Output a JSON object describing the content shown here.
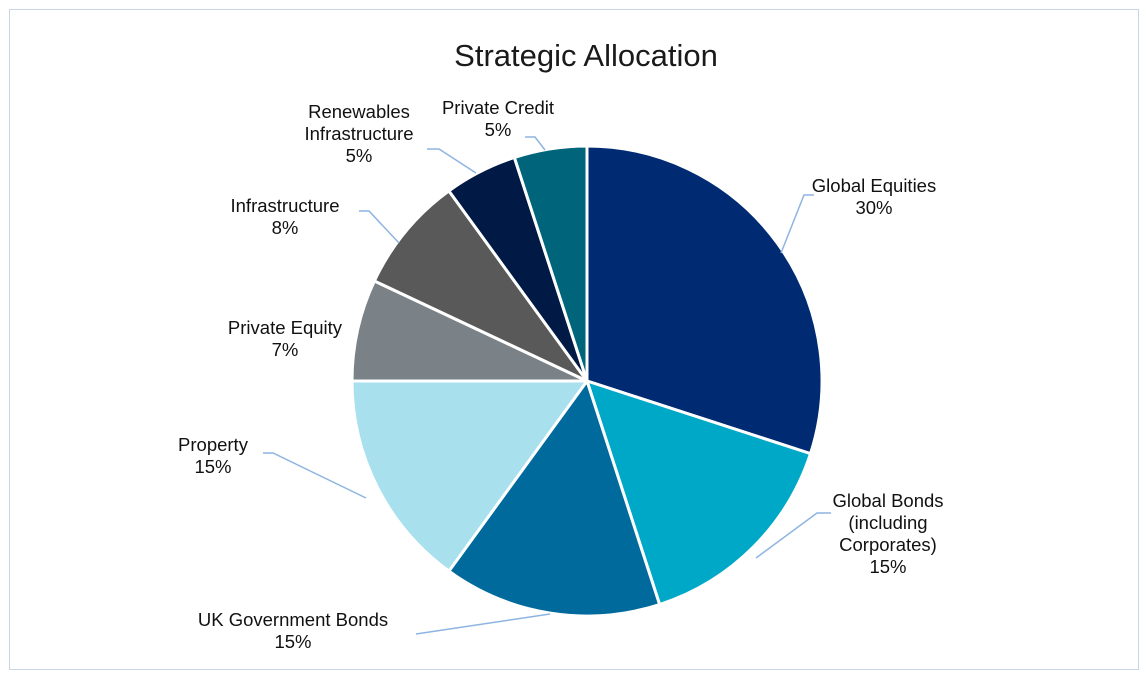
{
  "chart_data": {
    "type": "pie",
    "title": "Strategic Allocation",
    "legend": "none",
    "slices": [
      {
        "lines": [
          "Global Equities"
        ],
        "pct_label": "30%",
        "value": 30,
        "color": "#002b73"
      },
      {
        "lines": [
          "Global Bonds",
          "(including",
          "Corporates)"
        ],
        "pct_label": "15%",
        "value": 15,
        "color": "#00a8c8"
      },
      {
        "lines": [
          "UK Government Bonds"
        ],
        "pct_label": "15%",
        "value": 15,
        "color": "#006a9c"
      },
      {
        "lines": [
          "Property"
        ],
        "pct_label": "15%",
        "value": 15,
        "color": "#a8e0ee"
      },
      {
        "lines": [
          "Private Equity"
        ],
        "pct_label": "7%",
        "value": 7,
        "color": "#7a8288"
      },
      {
        "lines": [
          "Infrastructure"
        ],
        "pct_label": "8%",
        "value": 8,
        "color": "#595959"
      },
      {
        "lines": [
          "Renewables",
          "Infrastructure"
        ],
        "pct_label": "5%",
        "value": 5,
        "color": "#001a45"
      },
      {
        "lines": [
          "Private Credit"
        ],
        "pct_label": "5%",
        "value": 5,
        "color": "#00647a"
      }
    ]
  }
}
